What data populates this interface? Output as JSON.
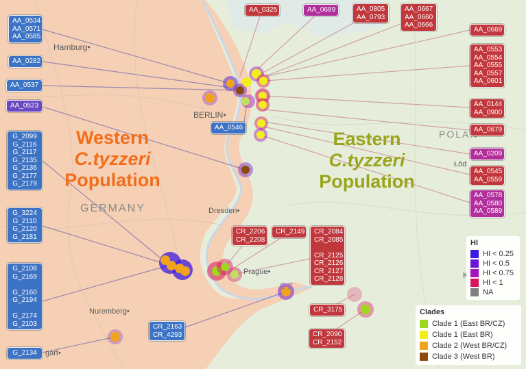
{
  "labels": {
    "blue": {
      "AA_0534_group": "AA_0534\nAA_0571\nAA_0585",
      "AA_0282": "AA_0282",
      "AA_0537": "AA_0537",
      "AA_0546": "AA_0546",
      "G_2099_group": "G_2099\nG_2116\nG_2117\nG_2135\nG_2136\nG_2177\nG_2179",
      "G_3224_group": "G_3224\nG_2110\nG_2120\nG_2181",
      "G_2108_group": "G_2108\nG_2169\n\nG_2160\nG_2194\n\nG_2174\nG_2103",
      "CR_2163_group": "CR_2163\nCR_4293",
      "G_2134": "G_2134"
    },
    "violet": {
      "AA_0523": "AA_0523"
    },
    "red": {
      "AA_0325": "AA_0325",
      "AA_0805_group": "AA_0805\nAA_0793",
      "AA_0667_group": "AA_0667\nAA_0660\nAA_0666",
      "AA_0669": "AA_0669",
      "AA_0553_group": "AA_0553\nAA_0554\nAA_0555\nAA_0557\nAA_0601",
      "AA_0144_group": "AA_0144\nAA_0900",
      "AA_0679": "AA_0679",
      "AA_0545_group": "AA_0545\nAA_0559",
      "CR_2206_group": "CR_2206\nCR_2208",
      "CR_2149": "CR_2149",
      "CR_2084_group": "CR_2084\nCR_2085\n\nCR_2125\nCR_2126\nCR_2127\nCR_2128",
      "CR_3175": "CR_3175",
      "CR_2090_group": "CR_2090\nCR_2152"
    },
    "purple": {
      "AA_0689": "AA_0689",
      "AA_0209": "AA_0209",
      "AA_0578_group": "AA_0578\nAA_0580\nAA_0589"
    }
  },
  "titles": {
    "west_line1": "Western",
    "west_line2": "C.tyzzeri",
    "west_line3": "Population",
    "east_line1": "Eastern",
    "east_line2": "C.tyzzeri",
    "east_line3": "Population"
  },
  "places": {
    "hamburg": "Hamburg",
    "berlin": "BERLIN",
    "germany": "GERMANY",
    "dresden": "Dresden",
    "prague": "Prague",
    "nuremberg": "Nuremberg",
    "stuttgart": "gart",
    "poland": "POLAN",
    "lodz": "Łód",
    "czechia": "CZ",
    "krakow": "K"
  },
  "legend_hi": {
    "title": "HI",
    "items": [
      {
        "label": "HI < 0.25",
        "color": "#3b1be0"
      },
      {
        "label": "HI < 0.5",
        "color": "#6a17d8"
      },
      {
        "label": "HI < 0.75",
        "color": "#a116c2"
      },
      {
        "label": "HI < 1",
        "color": "#d8155a"
      },
      {
        "label": "NA",
        "color": "#808080"
      }
    ]
  },
  "legend_clades": {
    "title": "Clades",
    "items": [
      {
        "label": "Clade 1 (East BR/CZ)",
        "color": "#9ed81e"
      },
      {
        "label": "Clade 1 (East BR)",
        "color": "#f2ee1a"
      },
      {
        "label": "Clade 2 (West BR/CZ)",
        "color": "#f0a41c"
      },
      {
        "label": "Clade 3 (West BR)",
        "color": "#8a4a0c"
      }
    ]
  },
  "colors": {
    "west_region": "#f5cdb2",
    "east_region": "#e8efdc",
    "west_title": "#f26d1c",
    "east_title": "#9aa51c"
  }
}
